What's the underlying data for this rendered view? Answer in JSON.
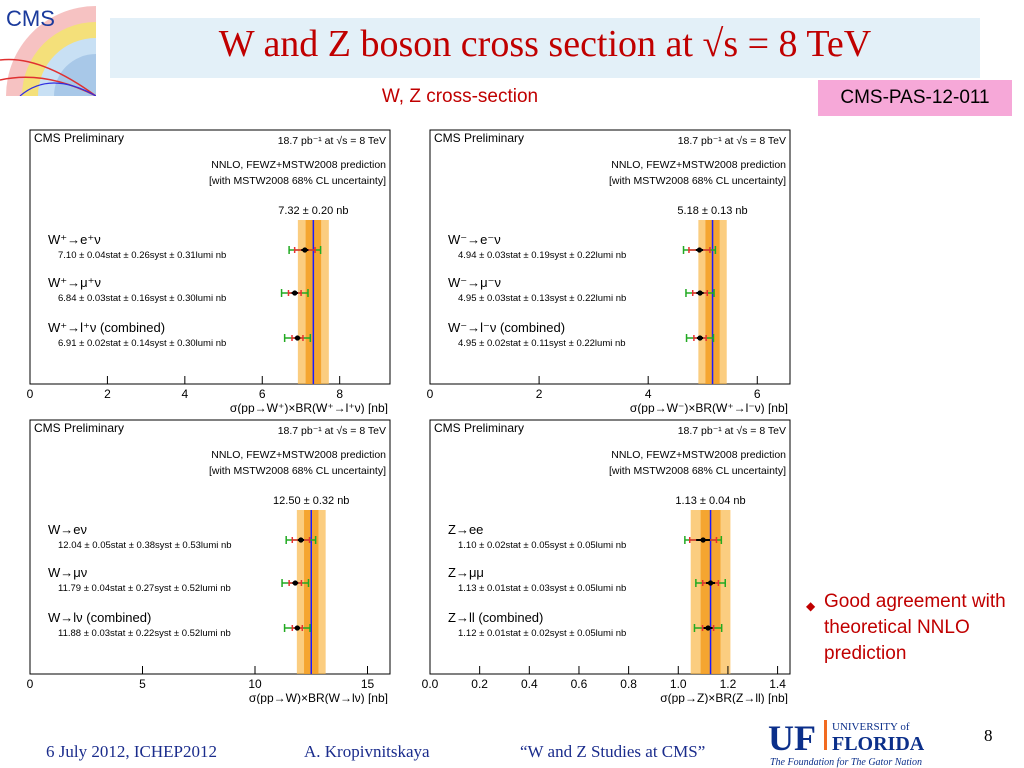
{
  "slide": {
    "title": "W and Z boson cross section at √s = 8 TeV",
    "subtitle": "W, Z cross-section",
    "badge": "CMS-PAS-12-011",
    "logo_text": "CMS",
    "bullet": "Good agreement with theoretical NNLO prediction",
    "footer": {
      "date": "6 July 2012, ICHEP2012",
      "author": "A. Kropivnitskaya",
      "talk": "“W and Z Studies at CMS”"
    },
    "page_number": "8",
    "university": {
      "uf": "UF",
      "line1": "UNIVERSITY of",
      "line2": "FLORIDA",
      "tagline": "The Foundation for The Gator Nation"
    }
  },
  "colors": {
    "title_red": "#c00000",
    "footer_blue": "#1a2c8c",
    "band_outer": "#f9b84a",
    "band_inner": "#f49b1c",
    "prediction_line": "#1a1aff",
    "stat_bar": "#000000",
    "syst_bar": "#e83030",
    "lumi_bar": "#22aa22",
    "badge_bg": "#f6a8d8",
    "title_bg": "#e3f0f8"
  },
  "chart_data": [
    {
      "type": "scatter",
      "label_left": "CMS Preliminary",
      "label_lumi": "18.7 pb⁻¹  at  √s = 8 TeV",
      "prediction_text_1": "NNLO, FEWZ+MSTW2008 prediction",
      "prediction_text_2": "[with MSTW2008 68% CL uncertainty]",
      "prediction_label": "7.32 ± 0.20 nb",
      "prediction": 7.32,
      "prediction_unc": 0.2,
      "xlim": [
        0,
        9.3
      ],
      "ticks": [
        0,
        2,
        4,
        6,
        8
      ],
      "tick_labels": [
        "0",
        "2",
        "4",
        "6",
        "8"
      ],
      "xlabel": "σ(pp→W⁺)×BR(W⁺→l⁺ν) [nb]",
      "points": [
        {
          "name": "W⁺→e⁺ν",
          "detail": "7.10 ± 0.04stat ± 0.26syst ± 0.31lumi nb",
          "value": 7.1,
          "stat": 0.04,
          "syst": 0.26,
          "lumi": 0.31
        },
        {
          "name": "W⁺→μ⁺ν",
          "detail": "6.84 ± 0.03stat ± 0.16syst ± 0.30lumi nb",
          "value": 6.84,
          "stat": 0.03,
          "syst": 0.16,
          "lumi": 0.3
        },
        {
          "name": "W⁺→l⁺ν (combined)",
          "detail": "6.91 ± 0.02stat ± 0.14syst ± 0.30lumi nb",
          "value": 6.91,
          "stat": 0.02,
          "syst": 0.14,
          "lumi": 0.3
        }
      ]
    },
    {
      "type": "scatter",
      "label_left": "CMS Preliminary",
      "label_lumi": "18.7 pb⁻¹  at  √s = 8 TeV",
      "prediction_text_1": "NNLO, FEWZ+MSTW2008 prediction",
      "prediction_text_2": "[with MSTW2008 68% CL uncertainty]",
      "prediction_label": "5.18 ± 0.13 nb",
      "prediction": 5.18,
      "prediction_unc": 0.13,
      "xlim": [
        0,
        6.6
      ],
      "ticks": [
        0,
        2,
        4,
        6
      ],
      "tick_labels": [
        "0",
        "2",
        "4",
        "6"
      ],
      "xlabel": "σ(pp→W⁻)×BR(W⁺→l⁻ν) [nb]",
      "points": [
        {
          "name": "W⁻→e⁻ν",
          "detail": "4.94 ± 0.03stat ± 0.19syst ± 0.22lumi nb",
          "value": 4.94,
          "stat": 0.03,
          "syst": 0.19,
          "lumi": 0.22
        },
        {
          "name": "W⁻→μ⁻ν",
          "detail": "4.95 ± 0.03stat ± 0.13syst ± 0.22lumi nb",
          "value": 4.95,
          "stat": 0.03,
          "syst": 0.13,
          "lumi": 0.22
        },
        {
          "name": "W⁻→l⁻ν (combined)",
          "detail": "4.95 ± 0.02stat ± 0.11syst ± 0.22lumi nb",
          "value": 4.95,
          "stat": 0.02,
          "syst": 0.11,
          "lumi": 0.22
        }
      ]
    },
    {
      "type": "scatter",
      "label_left": "CMS Preliminary",
      "label_lumi": "18.7 pb⁻¹  at  √s = 8 TeV",
      "prediction_text_1": "NNLO, FEWZ+MSTW2008 prediction",
      "prediction_text_2": "[with MSTW2008 68% CL uncertainty]",
      "prediction_label": "12.50 ± 0.32 nb",
      "prediction": 12.5,
      "prediction_unc": 0.32,
      "xlim": [
        0,
        16
      ],
      "ticks": [
        0,
        5,
        10,
        15
      ],
      "tick_labels": [
        "0",
        "5",
        "10",
        "15"
      ],
      "xlabel": "σ(pp→W)×BR(W→lν) [nb]",
      "points": [
        {
          "name": "W→eν",
          "detail": "12.04 ± 0.05stat ± 0.38syst ± 0.53lumi nb",
          "value": 12.04,
          "stat": 0.05,
          "syst": 0.38,
          "lumi": 0.53
        },
        {
          "name": "W→μν",
          "detail": "11.79 ± 0.04stat ± 0.27syst ± 0.52lumi nb",
          "value": 11.79,
          "stat": 0.04,
          "syst": 0.27,
          "lumi": 0.52
        },
        {
          "name": "W→lν (combined)",
          "detail": "11.88 ± 0.03stat ± 0.22syst ± 0.52lumi nb",
          "value": 11.88,
          "stat": 0.03,
          "syst": 0.22,
          "lumi": 0.52
        }
      ]
    },
    {
      "type": "scatter",
      "label_left": "CMS Preliminary",
      "label_lumi": "18.7 pb⁻¹  at  √s = 8 TeV",
      "prediction_text_1": "NNLO, FEWZ+MSTW2008 prediction",
      "prediction_text_2": "[with MSTW2008 68% CL uncertainty]",
      "prediction_label": "1.13 ± 0.04 nb",
      "prediction": 1.13,
      "prediction_unc": 0.04,
      "xlim": [
        0,
        1.45
      ],
      "ticks": [
        0,
        0.2,
        0.4,
        0.6,
        0.8,
        1.0,
        1.2,
        1.4
      ],
      "tick_labels": [
        "0.0",
        "0.2",
        "0.4",
        "0.6",
        "0.8",
        "1.0",
        "1.2",
        "1.4"
      ],
      "xlabel": "σ(pp→Z)×BR(Z→ll) [nb]",
      "points": [
        {
          "name": "Z→ee",
          "detail": "1.10 ± 0.02stat ± 0.05syst ± 0.05lumi nb",
          "value": 1.1,
          "stat": 0.02,
          "syst": 0.05,
          "lumi": 0.05
        },
        {
          "name": "Z→μμ",
          "detail": "1.13 ± 0.01stat ± 0.03syst ± 0.05lumi nb",
          "value": 1.13,
          "stat": 0.01,
          "syst": 0.03,
          "lumi": 0.05
        },
        {
          "name": "Z→ll (combined)",
          "detail": "1.12 ± 0.01stat ± 0.02syst ± 0.05lumi nb",
          "value": 1.12,
          "stat": 0.01,
          "syst": 0.02,
          "lumi": 0.05
        }
      ]
    }
  ]
}
